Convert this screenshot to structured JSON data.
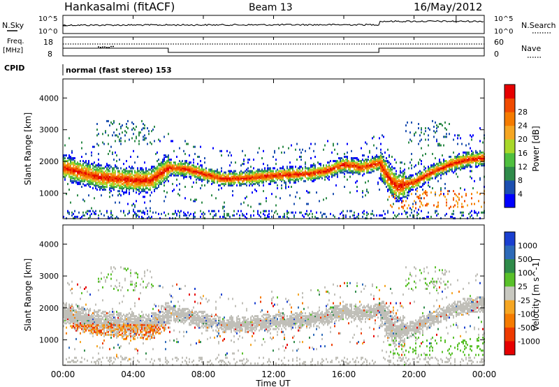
{
  "header": {
    "station": "Hankasalmi (fitACF)",
    "beam": "Beam 13",
    "date": "16/May/2012"
  },
  "top_panels": {
    "nsky_label": "N.Sky",
    "nsearch_label": "N.Search",
    "noise_ticks_left": [
      "10^5",
      "10^0"
    ],
    "noise_ticks_right": [
      "10^5",
      "10^0"
    ],
    "freq_label_line1": "Freq.",
    "freq_label_line2": "[MHz]",
    "freq_ticks": [
      "18",
      "8"
    ],
    "nave_label": "Nave",
    "nave_ticks": [
      "60",
      "0"
    ],
    "cpid_label": "CPID",
    "cpid_text": "normal (fast stereo) 153"
  },
  "colors": {
    "power_scale": [
      "#0000ff",
      "#1c4fb0",
      "#2f8b4a",
      "#4fbf3f",
      "#a8d82a",
      "#f5a623",
      "#f57b00",
      "#f04a00",
      "#e60000"
    ],
    "velocity_scale": [
      "#1a3fd0",
      "#2d6ab8",
      "#2f8b4a",
      "#59c02a",
      "#c8c8c0",
      "#f5a623",
      "#f57b00",
      "#ee3a00",
      "#e60000"
    ],
    "ground_scatter": "#c0bfb8"
  },
  "chart_data": [
    {
      "type": "heatmap",
      "quantity": "power",
      "ylabel": "Slant Range [km]",
      "yticks": [
        "1000",
        "2000",
        "3000",
        "4000"
      ],
      "ylim": [
        200,
        4600
      ],
      "colorbar_label": "Power [dB]",
      "colorbar_ticks": [
        "4",
        "8",
        "12",
        "16",
        "20",
        "24",
        "28"
      ],
      "colorbar_range": [
        0,
        32
      ],
      "main_band": {
        "x_hours": [
          0,
          1,
          2,
          3,
          4,
          5,
          6,
          7,
          8,
          9,
          10,
          11,
          12,
          13,
          14,
          15,
          16,
          17,
          18,
          18.5,
          19,
          20,
          21,
          22,
          23,
          24
        ],
        "range_km": [
          1800,
          1650,
          1500,
          1450,
          1400,
          1400,
          1800,
          1750,
          1600,
          1450,
          1450,
          1500,
          1550,
          1580,
          1600,
          1700,
          1900,
          1800,
          1950,
          1500,
          1200,
          1350,
          1650,
          1900,
          2050,
          2100
        ]
      }
    },
    {
      "type": "heatmap",
      "quantity": "velocity",
      "ylabel": "Slant Range [km]",
      "yticks": [
        "1000",
        "2000",
        "3000",
        "4000"
      ],
      "ylim": [
        200,
        4600
      ],
      "colorbar_label": "Velocity [m s^-1]",
      "colorbar_ticks": [
        "1000",
        "500",
        "100",
        "25",
        "-25",
        "-100",
        "-500",
        "-1000"
      ],
      "xlabel": "Time UT",
      "xticks": [
        "00:00",
        "04:00",
        "08:00",
        "12:00",
        "16:00",
        "20:00",
        "00:00"
      ],
      "xlim": [
        0,
        24
      ]
    }
  ]
}
